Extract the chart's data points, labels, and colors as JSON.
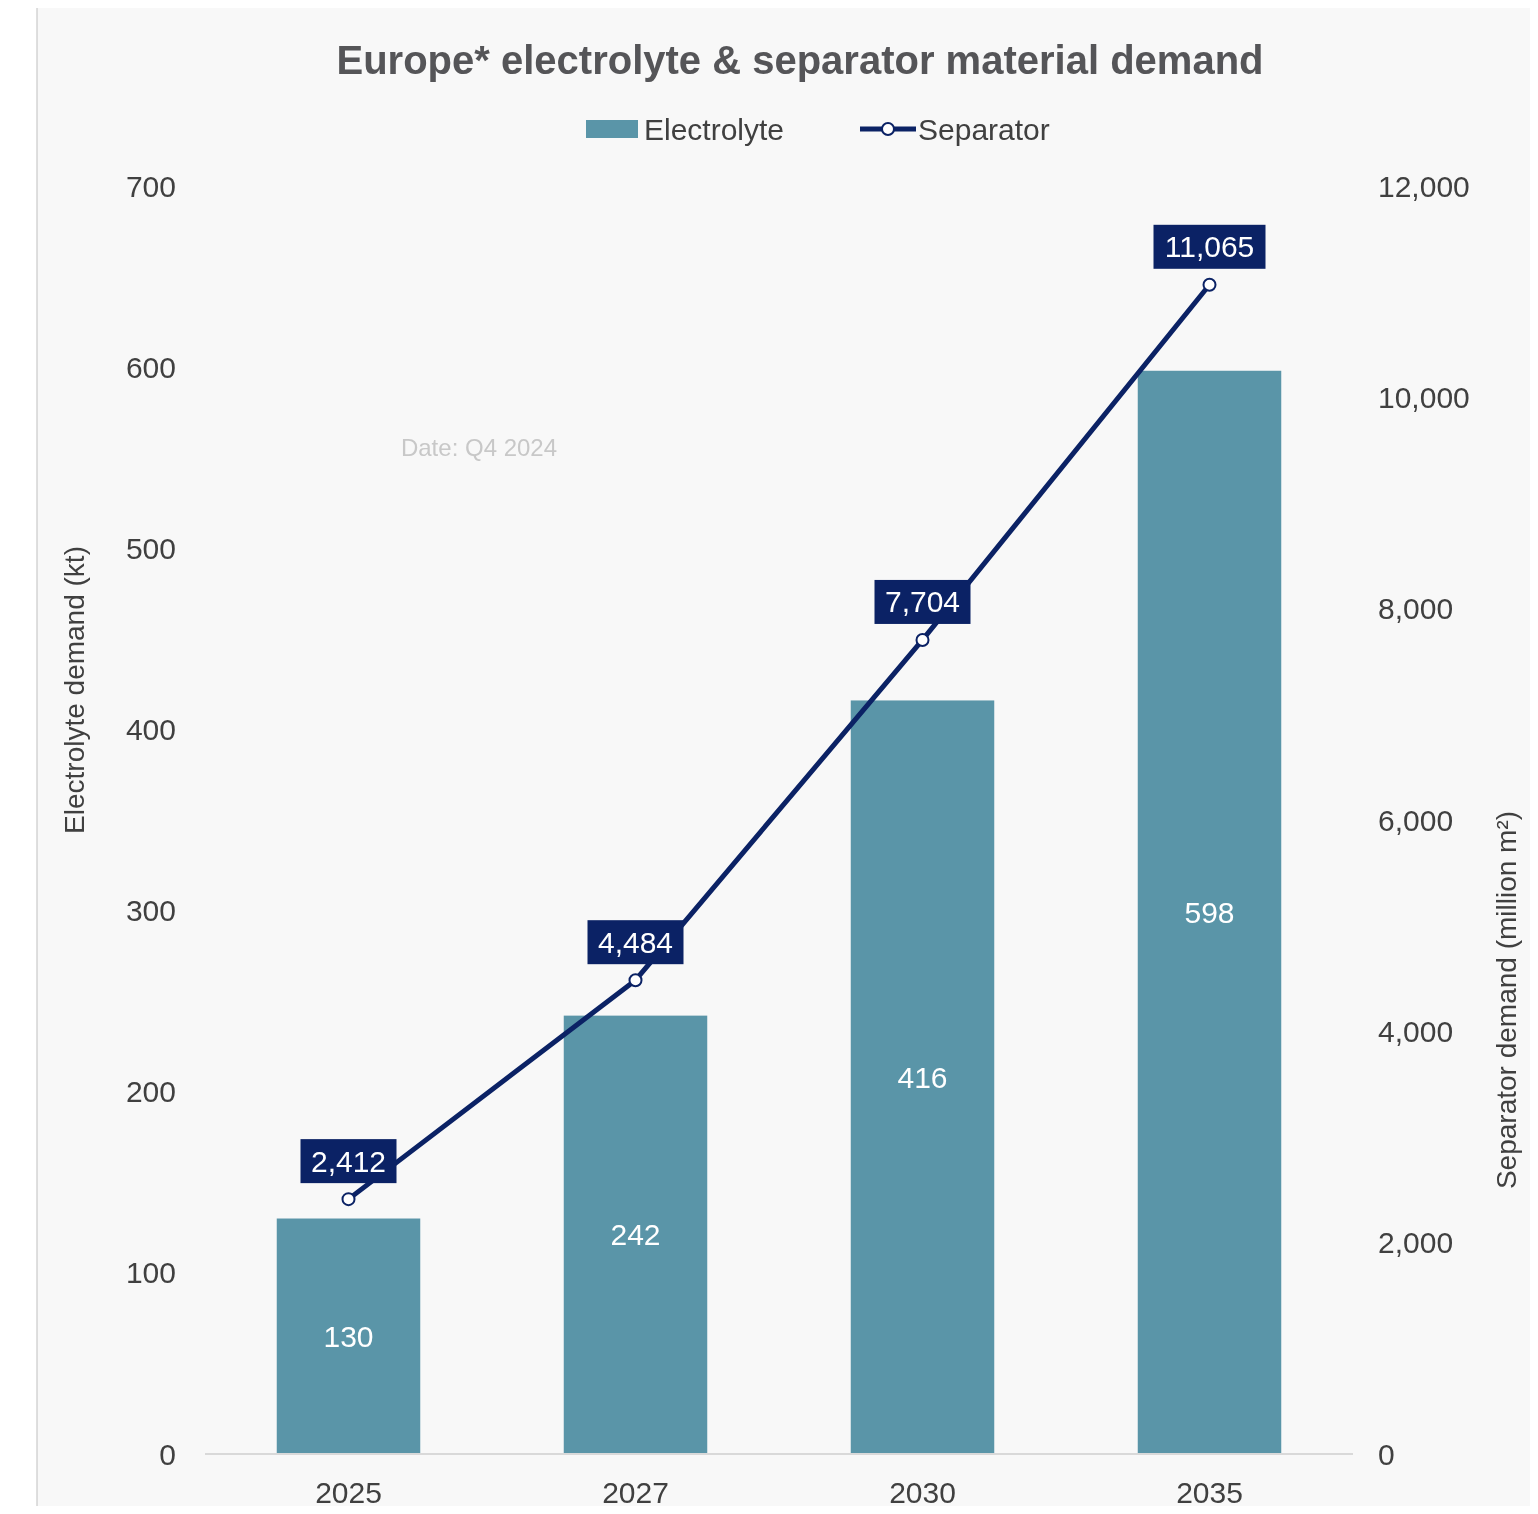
{
  "chart_data": {
    "type": "bar",
    "title": "Europe* electrolyte & separator material demand",
    "ylabel": "Electrolyte demand (kt)",
    "y2label": "Separator demand (million m²)",
    "annotations": [
      "Date: Q4 2024"
    ],
    "categories": [
      "2025",
      "2027",
      "2030",
      "2035"
    ],
    "series": [
      {
        "name": "Electrolyte",
        "color": "#5a95a8",
        "values": [
          130,
          242,
          416,
          598
        ]
      },
      {
        "name": "Separator",
        "type": "line",
        "axis": "y2",
        "color": "#0b2265",
        "marker": "circle",
        "values": [
          2412,
          4484,
          7704,
          11065
        ],
        "value_labels": [
          "2,412",
          "4,484",
          "7,704",
          "11,065"
        ]
      }
    ],
    "data_labels": true,
    "ylim": [
      0,
      700
    ],
    "yticks": [
      0,
      100,
      200,
      300,
      400,
      500,
      600,
      700
    ],
    "y2lim": [
      0,
      12000
    ],
    "y2ticks": [
      {
        "value": 0,
        "label": "0"
      },
      {
        "value": 2000,
        "label": "2,000"
      },
      {
        "value": 4000,
        "label": "4,000"
      },
      {
        "value": 6000,
        "label": "6,000"
      },
      {
        "value": 8000,
        "label": "8,000"
      },
      {
        "value": 10000,
        "label": "10,000"
      },
      {
        "value": 12000,
        "label": "12,000"
      }
    ],
    "grid": false,
    "legend": "top"
  }
}
